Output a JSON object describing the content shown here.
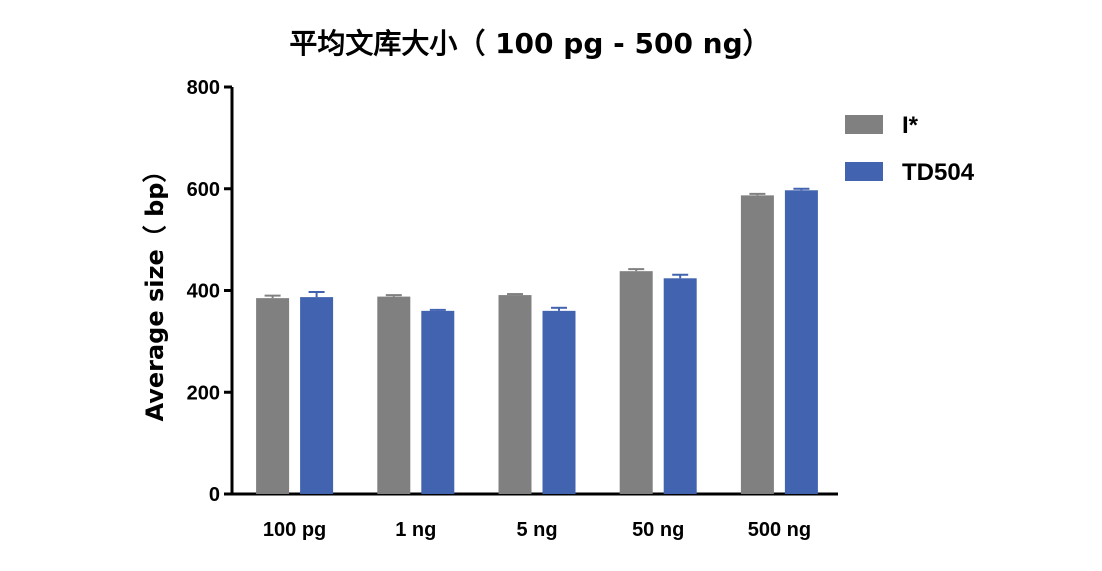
{
  "chart_data": {
    "type": "bar",
    "title": "平均文库大小（ 100 pg - 500 ng）",
    "xlabel": "",
    "ylabel": "Average size（ bp）",
    "ylim": [
      0,
      800
    ],
    "yticks": [
      0,
      200,
      400,
      600,
      800
    ],
    "categories": [
      "100 pg",
      "1 ng",
      "5 ng",
      "50 ng",
      "500 ng"
    ],
    "series": [
      {
        "name": "I*",
        "color": "#808080",
        "values": [
          385,
          388,
          391,
          438,
          587
        ],
        "errors": [
          5,
          3,
          2,
          4,
          3
        ]
      },
      {
        "name": "TD504",
        "color": "#4263b0",
        "values": [
          387,
          360,
          360,
          424,
          597
        ],
        "errors": [
          10,
          2,
          6,
          7,
          3
        ]
      }
    ],
    "legend_position": "top-right",
    "grid": false
  }
}
